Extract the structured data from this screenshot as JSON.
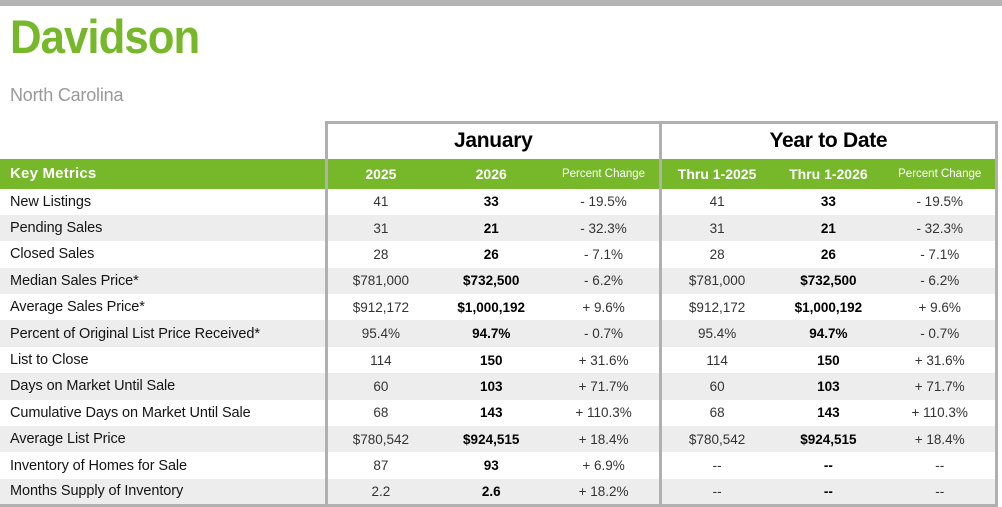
{
  "page": {
    "title": "Davidson",
    "subtitle": "North Carolina"
  },
  "table": {
    "key_metrics_label": "Key Metrics",
    "sections": [
      {
        "label": "January",
        "columns": [
          "2025",
          "2026",
          "Percent Change"
        ]
      },
      {
        "label": "Year to Date",
        "columns": [
          "Thru 1-2025",
          "Thru 1-2026",
          "Percent Change"
        ]
      }
    ],
    "rows": [
      {
        "label": "New Listings",
        "jan": [
          "41",
          "33",
          "- 19.5%"
        ],
        "ytd": [
          "41",
          "33",
          "- 19.5%"
        ]
      },
      {
        "label": "Pending Sales",
        "jan": [
          "31",
          "21",
          "- 32.3%"
        ],
        "ytd": [
          "31",
          "21",
          "- 32.3%"
        ]
      },
      {
        "label": "Closed Sales",
        "jan": [
          "28",
          "26",
          "- 7.1%"
        ],
        "ytd": [
          "28",
          "26",
          "- 7.1%"
        ]
      },
      {
        "label": "Median Sales Price*",
        "jan": [
          "$781,000",
          "$732,500",
          "- 6.2%"
        ],
        "ytd": [
          "$781,000",
          "$732,500",
          "- 6.2%"
        ]
      },
      {
        "label": "Average Sales Price*",
        "jan": [
          "$912,172",
          "$1,000,192",
          "+ 9.6%"
        ],
        "ytd": [
          "$912,172",
          "$1,000,192",
          "+ 9.6%"
        ]
      },
      {
        "label": "Percent of Original List Price Received*",
        "jan": [
          "95.4%",
          "94.7%",
          "- 0.7%"
        ],
        "ytd": [
          "95.4%",
          "94.7%",
          "- 0.7%"
        ]
      },
      {
        "label": "List to Close",
        "jan": [
          "114",
          "150",
          "+ 31.6%"
        ],
        "ytd": [
          "114",
          "150",
          "+ 31.6%"
        ]
      },
      {
        "label": "Days on Market Until Sale",
        "jan": [
          "60",
          "103",
          "+ 71.7%"
        ],
        "ytd": [
          "60",
          "103",
          "+ 71.7%"
        ]
      },
      {
        "label": "Cumulative Days on Market Until Sale",
        "jan": [
          "68",
          "143",
          "+ 110.3%"
        ],
        "ytd": [
          "68",
          "143",
          "+ 110.3%"
        ]
      },
      {
        "label": "Average List Price",
        "jan": [
          "$780,542",
          "$924,515",
          "+ 18.4%"
        ],
        "ytd": [
          "$780,542",
          "$924,515",
          "+ 18.4%"
        ]
      },
      {
        "label": "Inventory of Homes for Sale",
        "jan": [
          "87",
          "93",
          "+ 6.9%"
        ],
        "ytd": [
          "--",
          "--",
          "--"
        ]
      },
      {
        "label": "Months Supply of Inventory",
        "jan": [
          "2.2",
          "2.6",
          "+ 18.2%"
        ],
        "ytd": [
          "--",
          "--",
          "--"
        ]
      }
    ]
  },
  "colors": {
    "accent_green": "#76b82a",
    "row_stripe": "#ededed",
    "border_gray": "#b0b0b0",
    "subtitle_gray": "#999999"
  }
}
